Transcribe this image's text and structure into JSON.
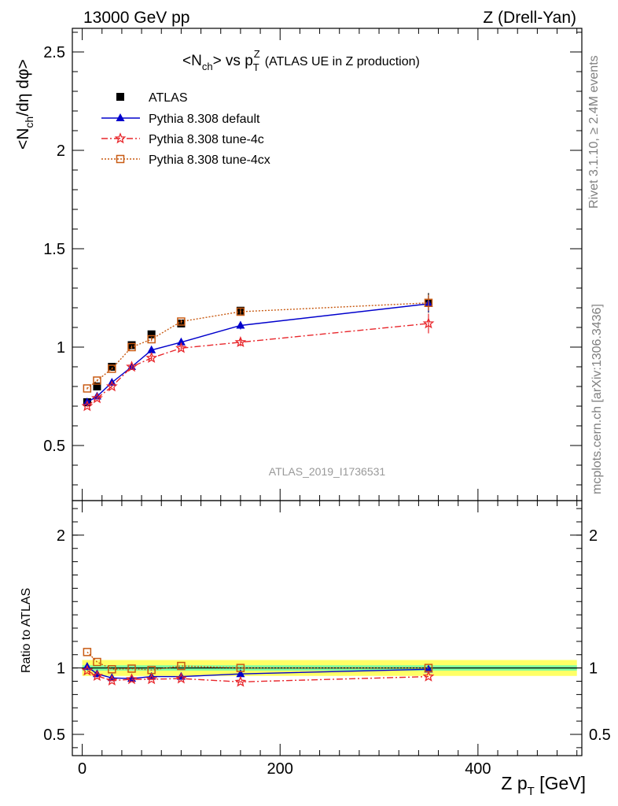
{
  "header": {
    "left": "13000 GeV pp",
    "right": "Z (Drell-Yan)"
  },
  "side_labels": {
    "top": "Rivet 3.1.10, ≥ 2.4M events",
    "bottom": "mcplots.cern.ch [arXiv:1306.3436]"
  },
  "watermark": "ATLAS_2019_I1736531",
  "chart_data": [
    {
      "type": "line",
      "title": "<N_ch> vs p_T^Z (ATLAS UE in Z production)",
      "title_main": "<N",
      "title_sub": "ch",
      "title_mid": "> vs p",
      "title_sub2": "T",
      "title_sup": "Z",
      "title_rest": "(ATLAS UE in Z production)",
      "ylabel": "<N_ch/dη dφ>",
      "ylabel_parts": [
        "<N",
        "ch",
        "/dη dφ>"
      ],
      "xlim": [
        -10,
        505
      ],
      "ylim": [
        0.22,
        2.62
      ],
      "y_ticks": [
        0.5,
        1,
        1.5,
        2,
        2.5
      ],
      "y_tick_labels": [
        "0.5",
        "1",
        "1.5",
        "2",
        "2.5"
      ],
      "grid": false,
      "legend_position": "top-left",
      "x": [
        5,
        15,
        30,
        50,
        70,
        100,
        160,
        350
      ],
      "series": [
        {
          "name": "ATLAS",
          "marker": "square",
          "color": "#000000",
          "dash": "none",
          "values": [
            0.72,
            0.8,
            0.9,
            1.01,
            1.065,
            1.12,
            1.185,
            1.225
          ],
          "errors": [
            0.01,
            0.01,
            0.01,
            0.01,
            0.01,
            0.01,
            0.015,
            0.05
          ]
        },
        {
          "name": "Pythia 8.308 default",
          "marker": "triangle",
          "color": "#0000cc",
          "dash": "none",
          "values": [
            0.72,
            0.75,
            0.82,
            0.9,
            0.985,
            1.025,
            1.11,
            1.22
          ],
          "errors": [
            0.005,
            0.005,
            0.005,
            0.008,
            0.01,
            0.01,
            0.02,
            0.04
          ]
        },
        {
          "name": "Pythia 8.308 tune-4c",
          "marker": "star",
          "color": "#e8262b",
          "dash": "8,3,2,3",
          "values": [
            0.7,
            0.74,
            0.8,
            0.9,
            0.945,
            0.995,
            1.025,
            1.12
          ],
          "errors": [
            0.005,
            0.005,
            0.005,
            0.008,
            0.01,
            0.01,
            0.02,
            0.05
          ]
        },
        {
          "name": "Pythia 8.308 tune-4cx",
          "marker": "open-square",
          "color": "#c85a12",
          "dash": "2,2",
          "values": [
            0.79,
            0.83,
            0.89,
            1.0,
            1.04,
            1.13,
            1.18,
            1.225
          ],
          "errors": [
            0.005,
            0.005,
            0.005,
            0.008,
            0.01,
            0.01,
            0.015,
            0.04
          ]
        }
      ]
    },
    {
      "type": "line",
      "ylabel": "Ratio to ATLAS",
      "xlabel": "Z p_T [GeV]",
      "xlabel_parts": [
        "Z p",
        "T",
        " [GeV]"
      ],
      "xlim": [
        -10,
        505
      ],
      "ylim": [
        0.34,
        2.26
      ],
      "x_ticks": [
        0,
        200,
        400
      ],
      "x_tick_labels": [
        "0",
        "200",
        "400"
      ],
      "y_ticks": [
        0.5,
        1,
        2
      ],
      "y_tick_labels": [
        "0.5",
        "1",
        "2"
      ],
      "grid": false,
      "band": {
        "x_start": 0,
        "x_end": 500,
        "inner": [
          0.98,
          1.02
        ],
        "outer": [
          0.94,
          1.06
        ],
        "inner_color": "#7fffa0",
        "outer_color": "#ffff66"
      },
      "x": [
        5,
        15,
        30,
        50,
        70,
        100,
        160,
        350
      ],
      "series": [
        {
          "name": "Pythia 8.308 default",
          "marker": "triangle",
          "color": "#0000cc",
          "dash": "none",
          "values": [
            1.01,
            0.955,
            0.925,
            0.92,
            0.935,
            0.935,
            0.955,
            0.99
          ]
        },
        {
          "name": "Pythia 8.308 tune-4c",
          "marker": "star",
          "color": "#e8262b",
          "dash": "8,3,2,3",
          "values": [
            0.98,
            0.94,
            0.905,
            0.915,
            0.915,
            0.92,
            0.895,
            0.935
          ]
        },
        {
          "name": "Pythia 8.308 tune-4cx",
          "marker": "open-square",
          "color": "#c85a12",
          "dash": "2,2",
          "values": [
            1.12,
            1.045,
            0.99,
            0.995,
            0.985,
            1.015,
            1.0,
            1.0
          ]
        }
      ]
    }
  ]
}
